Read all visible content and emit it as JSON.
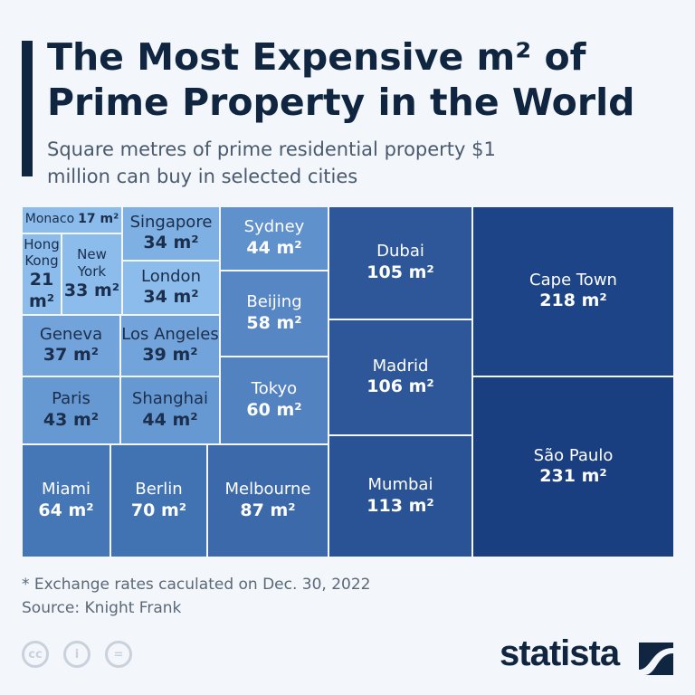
{
  "chart_data": {
    "type": "treemap",
    "title": "The Most Expensive m² of Prime Property in the World",
    "subtitle": "Square metres of prime residential property $1 million can buy in selected cities",
    "unit": "m²",
    "items": [
      {
        "name": "Monaco",
        "value": 17,
        "label": "Monaco 17 m²",
        "color": "#8cbcec"
      },
      {
        "name": "Hong Kong",
        "value": 21,
        "label": "Hong Kong 21 m²",
        "color": "#8cbcec"
      },
      {
        "name": "New York",
        "value": 33,
        "label": "New York 33 m²",
        "color": "#8cbcec"
      },
      {
        "name": "Singapore",
        "value": 34,
        "label": "Singapore 34 m²",
        "color": "#7eb0e4"
      },
      {
        "name": "London",
        "value": 34,
        "label": "London 34 m²",
        "color": "#8cbcec"
      },
      {
        "name": "Geneva",
        "value": 37,
        "label": "Geneva 37 m²",
        "color": "#72a4db"
      },
      {
        "name": "Los Angeles",
        "value": 39,
        "label": "Los Angeles 39 m²",
        "color": "#72a4db"
      },
      {
        "name": "Paris",
        "value": 43,
        "label": "Paris 43 m²",
        "color": "#6698d2"
      },
      {
        "name": "Shanghai",
        "value": 44,
        "label": "Shanghai 44 m²",
        "color": "#6698d2"
      },
      {
        "name": "Sydney",
        "value": 44,
        "label": "Sydney 44 m²",
        "color": "#5f91cc"
      },
      {
        "name": "Beijing",
        "value": 58,
        "label": "Beijing 58 m²",
        "color": "#5686c4"
      },
      {
        "name": "Tokyo",
        "value": 60,
        "label": "Tokyo 60 m²",
        "color": "#5282c0"
      },
      {
        "name": "Miami",
        "value": 64,
        "label": "Miami 64 m²",
        "color": "#4576b6"
      },
      {
        "name": "Berlin",
        "value": 70,
        "label": "Berlin 70 m²",
        "color": "#4172b2"
      },
      {
        "name": "Melbourne",
        "value": 87,
        "label": "Melbourne 87 m²",
        "color": "#3b69a9"
      },
      {
        "name": "Dubai",
        "value": 105,
        "label": "Dubai 105 m²",
        "color": "#2d5799"
      },
      {
        "name": "Madrid",
        "value": 106,
        "label": "Madrid 106 m²",
        "color": "#2d5799"
      },
      {
        "name": "Mumbai",
        "value": 113,
        "label": "Mumbai 113 m²",
        "color": "#2a5395"
      },
      {
        "name": "Cape Town",
        "value": 218,
        "label": "Cape Town 218 m²",
        "color": "#1d4486"
      },
      {
        "name": "São Paulo",
        "value": 231,
        "label": "São Paulo 231 m²",
        "color": "#1a3f80"
      }
    ]
  },
  "footnote": "* Exchange rates caculated on Dec. 30, 2022",
  "source": "Source: Knight Frank",
  "license_icons": [
    "cc",
    "by",
    "nd"
  ],
  "logo": "statista"
}
